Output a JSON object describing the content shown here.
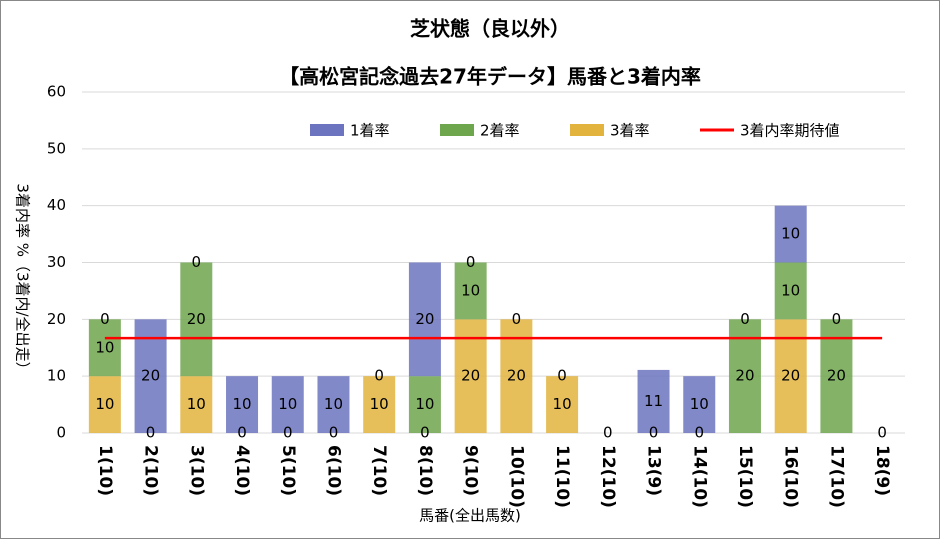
{
  "chart_data": {
    "type": "bar",
    "stacked": true,
    "title": "芝状態（良以外）",
    "subtitle": "【高松宮記念過去27年データ】馬番と3着内率",
    "y_label": "3着内率 %（3着内/全出走）",
    "x_label": "馬番(全出馬数)",
    "categories": [
      "1(10)",
      "2(10)",
      "3(10)",
      "4(10)",
      "5(10)",
      "6(10)",
      "7(10)",
      "8(10)",
      "9(10)",
      "10(10)",
      "11(10)",
      "12(10)",
      "13(9)",
      "14(10)",
      "15(10)",
      "16(10)",
      "17(10)",
      "18(9)"
    ],
    "series": [
      {
        "name": "1着率",
        "color": "#6c74c0",
        "values": [
          0,
          20,
          0,
          10,
          10,
          10,
          0,
          20,
          0,
          0,
          0,
          0,
          11.1,
          10,
          0,
          10,
          0,
          0
        ],
        "value_labels": [
          "0",
          "20",
          "0",
          "10",
          "10",
          "10",
          "0",
          "20",
          "0",
          "0",
          "0",
          "0",
          "11",
          "10",
          "0",
          "10",
          "0",
          "0"
        ]
      },
      {
        "name": "2着率",
        "color": "#6ea64e",
        "values": [
          10,
          0,
          20,
          0,
          0,
          0,
          0,
          10,
          10,
          0,
          0,
          0,
          0,
          0,
          20,
          10,
          20,
          0
        ]
      },
      {
        "name": "3着率",
        "color": "#e2b43e",
        "values": [
          10,
          0,
          10,
          0,
          0,
          0,
          10,
          0,
          20,
          20,
          10,
          0,
          0,
          0,
          0,
          20,
          0,
          0
        ]
      }
    ],
    "line": {
      "name": "3着内率期待値",
      "color": "#ff0000",
      "value": 16.7
    },
    "ylim": [
      0,
      60
    ],
    "yticks": [
      0,
      10,
      20,
      30,
      40,
      50,
      60
    ],
    "grid": true
  }
}
